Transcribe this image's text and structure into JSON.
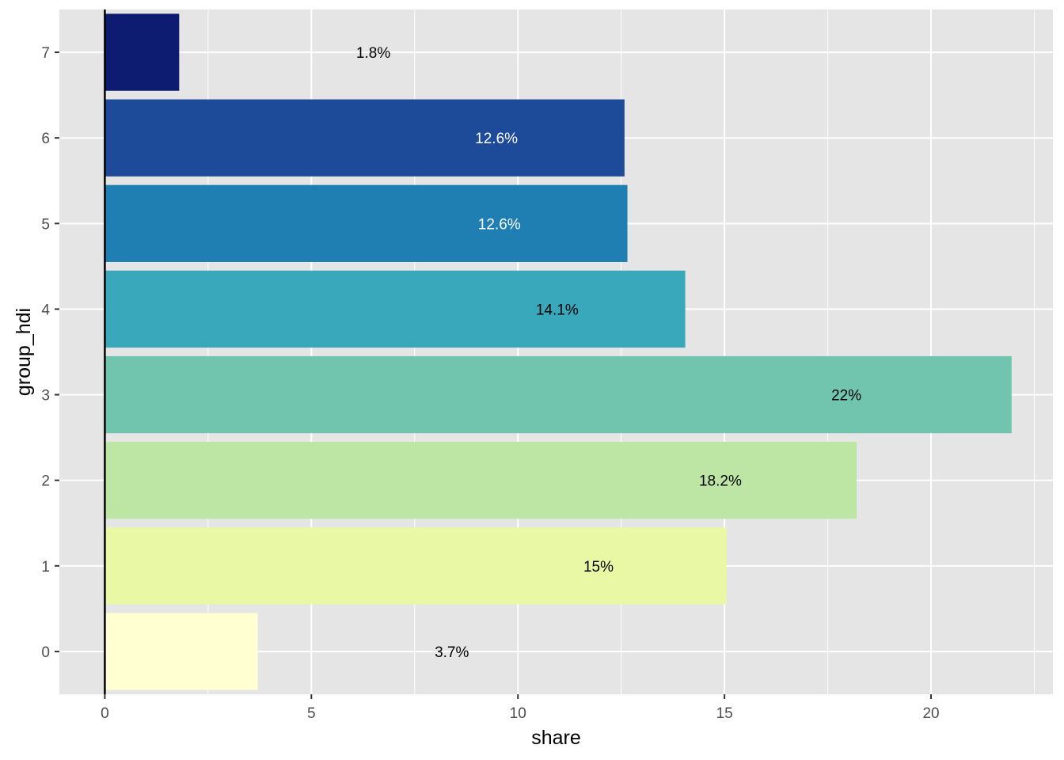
{
  "chart_data": {
    "type": "bar",
    "orientation": "horizontal",
    "title": "",
    "xlabel": "share",
    "ylabel": "group_hdi",
    "xlim": [
      -1.1,
      22.95
    ],
    "x_ticks": [
      0,
      5,
      10,
      15,
      20
    ],
    "grid": true,
    "legend": "none",
    "categories": [
      "0",
      "1",
      "2",
      "3",
      "4",
      "5",
      "6",
      "7"
    ],
    "values": [
      3.7,
      15.05,
      18.2,
      21.95,
      14.05,
      12.65,
      12.58,
      1.8
    ],
    "labels": [
      "3.7%",
      "15%",
      "18.2%",
      "22%",
      "14.1%",
      "12.6%",
      "12.6%",
      "1.8%"
    ],
    "colors": [
      "#FFFFD1",
      "#E9F8A4",
      "#BDE6A5",
      "#71C5AE",
      "#39A8BA",
      "#1F7FB3",
      "#1D4B99",
      "#0D1B70"
    ],
    "label_colors": [
      "#000000",
      "#000000",
      "#000000",
      "#000000",
      "#000000",
      "#ffffff",
      "#ffffff",
      "#000000"
    ],
    "panel_background": "#E5E5E5",
    "grid_color": "#ffffff",
    "reference_line": {
      "x": 0,
      "color": "#000000"
    }
  }
}
